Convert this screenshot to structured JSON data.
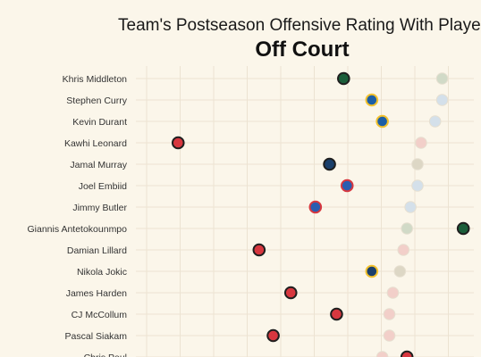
{
  "chart_data": {
    "type": "scatter",
    "title": "Team's Postseason Offensive Rating With Player",
    "subtitle": "Off Court",
    "xlabel": "",
    "ylabel": "",
    "grid": true,
    "players": [
      {
        "name": "Khris Middleton",
        "value": 104.5,
        "outline": "#1f1f1f",
        "fill": "#1b5e3a",
        "ghost_value": 118.5,
        "ghost_fill": "#d1dac7"
      },
      {
        "name": "Stephen Curry",
        "value": 108.5,
        "outline": "#f2c12e",
        "fill": "#1d5fa6",
        "ghost_value": 118.5,
        "ghost_fill": "#d4e0ea"
      },
      {
        "name": "Kevin Durant",
        "value": 110.0,
        "outline": "#f2c12e",
        "fill": "#1d5fa6",
        "ghost_value": 117.5,
        "ghost_fill": "#d4e0ea"
      },
      {
        "name": "Kawhi Leonard",
        "value": 81.0,
        "outline": "#1f1f1f",
        "fill": "#d7373f",
        "ghost_value": 115.5,
        "ghost_fill": "#f2cfc9"
      },
      {
        "name": "Jamal Murray",
        "value": 102.5,
        "outline": "#1f1f1f",
        "fill": "#1a3f6b",
        "ghost_value": 115.0,
        "ghost_fill": "#ddd7c5"
      },
      {
        "name": "Joel Embiid",
        "value": 105.0,
        "outline": "#d7373f",
        "fill": "#2a5db0",
        "ghost_value": 115.0,
        "ghost_fill": "#d4e0ea"
      },
      {
        "name": "Jimmy Butler",
        "value": 100.5,
        "outline": "#d7373f",
        "fill": "#2a5db0",
        "ghost_value": 114.0,
        "ghost_fill": "#d4e0ea"
      },
      {
        "name": "Giannis Antetokounmpo",
        "value": 121.5,
        "outline": "#1f1f1f",
        "fill": "#1b5e3a",
        "ghost_value": 113.5,
        "ghost_fill": "#d1dac7"
      },
      {
        "name": "Damian Lillard",
        "value": 92.5,
        "outline": "#1f1f1f",
        "fill": "#d7373f",
        "ghost_value": 113.0,
        "ghost_fill": "#f2cfc9"
      },
      {
        "name": "Nikola Jokic",
        "value": 108.5,
        "outline": "#f2c12e",
        "fill": "#1a3f6b",
        "ghost_value": 112.5,
        "ghost_fill": "#ddd7c5"
      },
      {
        "name": "James Harden",
        "value": 97.0,
        "outline": "#1f1f1f",
        "fill": "#d7373f",
        "ghost_value": 111.5,
        "ghost_fill": "#f2cfc9"
      },
      {
        "name": "CJ McCollum",
        "value": 103.5,
        "outline": "#1f1f1f",
        "fill": "#d7373f",
        "ghost_value": 111.0,
        "ghost_fill": "#f2cfc9"
      },
      {
        "name": "Pascal Siakam",
        "value": 94.5,
        "outline": "#1f1f1f",
        "fill": "#d7373f",
        "ghost_value": 111.0,
        "ghost_fill": "#f2cfc9"
      },
      {
        "name": "Chris Paul",
        "value": 113.5,
        "outline": "#1f1f1f",
        "fill": "#d7373f",
        "ghost_value": 110.0,
        "ghost_fill": "#f2cfc9"
      }
    ],
    "xlim": [
      75,
      123
    ]
  }
}
